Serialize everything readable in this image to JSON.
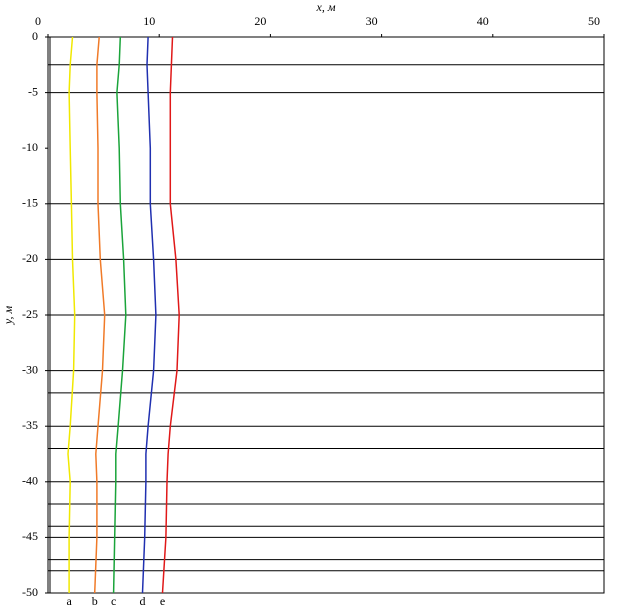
{
  "chart_data": {
    "type": "line",
    "x_label": "x, м",
    "y_label": "y, м",
    "xlim": [
      0,
      50
    ],
    "xticks": [
      0,
      10,
      20,
      30,
      40,
      50
    ],
    "ylim": [
      -50,
      0
    ],
    "yticks": [
      0,
      -5,
      -10,
      -15,
      -20,
      -25,
      -30,
      -35,
      -40,
      -45,
      -50
    ],
    "hlines": [
      -2.5,
      -5,
      -15,
      -20,
      -25,
      -30,
      -32,
      -35,
      -37,
      -40,
      -42,
      -44,
      -45,
      -47,
      -48
    ],
    "y": [
      0,
      -2.5,
      -5,
      -10,
      -15,
      -20,
      -25,
      -30,
      -35,
      -37.5,
      -40,
      -45,
      -50
    ],
    "series": [
      {
        "name": "a",
        "color": "#f0e800",
        "values": [
          2.2,
          2.0,
          1.9,
          2.0,
          2.1,
          2.2,
          2.4,
          2.3,
          2.0,
          1.8,
          2.0,
          1.9,
          1.9
        ]
      },
      {
        "name": "b",
        "color": "#f07a28",
        "values": [
          4.6,
          4.4,
          4.4,
          4.5,
          4.5,
          4.7,
          5.1,
          4.9,
          4.5,
          4.3,
          4.4,
          4.4,
          4.2
        ]
      },
      {
        "name": "c",
        "color": "#1aa43a",
        "values": [
          6.5,
          6.4,
          6.2,
          6.4,
          6.5,
          6.8,
          7.0,
          6.7,
          6.3,
          6.1,
          6.1,
          6.0,
          5.9
        ]
      },
      {
        "name": "d",
        "color": "#2030b0",
        "values": [
          9.0,
          8.9,
          9.0,
          9.2,
          9.2,
          9.5,
          9.7,
          9.5,
          9.0,
          8.8,
          8.8,
          8.7,
          8.5
        ]
      },
      {
        "name": "e",
        "color": "#e01818",
        "values": [
          11.2,
          11.1,
          11.0,
          11.0,
          11.0,
          11.5,
          11.8,
          11.6,
          11.0,
          10.8,
          10.7,
          10.6,
          10.3
        ]
      }
    ]
  }
}
